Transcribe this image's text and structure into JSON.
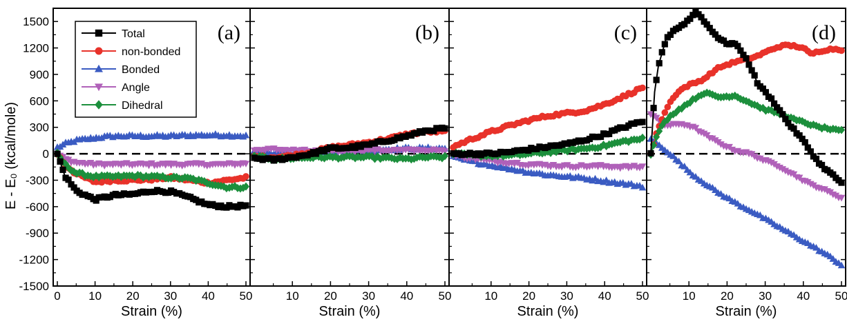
{
  "chart_data": {
    "type": "scatter",
    "ylabel": "E - E₀ (kcal/mole)",
    "ylim": [
      -1500,
      1650
    ],
    "yticks": [
      -1500,
      -1200,
      -900,
      -600,
      -300,
      0,
      300,
      600,
      900,
      1200,
      1500
    ],
    "legend": {
      "placement": "top-left of panel (a)",
      "entries": [
        "Total",
        "non-bonded",
        "Bonded",
        "Angle",
        "Dihedral"
      ]
    },
    "colors": {
      "Total": "#000000",
      "non-bonded": "#e8322a",
      "Bonded": "#3a5bc2",
      "Angle": "#b061b9",
      "Dihedral": "#1c8f3c",
      "zero_line": "#000000"
    },
    "markers": {
      "Total": "square",
      "non-bonded": "circle",
      "Bonded": "triangle-up",
      "Angle": "triangle-down",
      "Dihedral": "diamond"
    },
    "panels": [
      {
        "label": "(a)",
        "xlabel": "Strain (%)",
        "xlim": [
          0,
          50
        ],
        "xticks": [
          0,
          10,
          20,
          30,
          40,
          50
        ],
        "series": [
          {
            "name": "Total",
            "x": [
              0,
              2,
              5,
              10,
              15,
              20,
              25,
              30,
              35,
              40,
              45,
              50
            ],
            "y": [
              0,
              -250,
              -420,
              -520,
              -470,
              -460,
              -420,
              -430,
              -500,
              -580,
              -600,
              -590
            ]
          },
          {
            "name": "non-bonded",
            "x": [
              0,
              2,
              5,
              10,
              15,
              20,
              25,
              30,
              35,
              40,
              45,
              50
            ],
            "y": [
              0,
              -120,
              -230,
              -320,
              -300,
              -300,
              -290,
              -270,
              -300,
              -330,
              -300,
              -270
            ]
          },
          {
            "name": "Bonded",
            "x": [
              0,
              2,
              5,
              10,
              15,
              20,
              25,
              30,
              35,
              40,
              45,
              50
            ],
            "y": [
              70,
              110,
              150,
              180,
              200,
              200,
              200,
              200,
              210,
              210,
              210,
              200
            ]
          },
          {
            "name": "Angle",
            "x": [
              0,
              2,
              5,
              10,
              15,
              20,
              25,
              30,
              35,
              40,
              45,
              50
            ],
            "y": [
              0,
              -60,
              -100,
              -120,
              -120,
              -120,
              -120,
              -120,
              -120,
              -120,
              -120,
              -110
            ]
          },
          {
            "name": "Dihedral",
            "x": [
              0,
              2,
              5,
              10,
              15,
              20,
              25,
              30,
              35,
              40,
              45,
              50
            ],
            "y": [
              0,
              -120,
              -220,
              -260,
              -260,
              -250,
              -260,
              -270,
              -280,
              -330,
              -380,
              -380
            ]
          }
        ]
      },
      {
        "label": "(b)",
        "xlabel": "Strain (%)",
        "xlim": [
          0,
          50
        ],
        "xticks": [
          10,
          20,
          30,
          40,
          50
        ],
        "series": [
          {
            "name": "Total",
            "x": [
              0,
              5,
              10,
              15,
              20,
              25,
              30,
              35,
              40,
              45,
              50
            ],
            "y": [
              -50,
              -70,
              -40,
              0,
              60,
              70,
              100,
              150,
              200,
              260,
              290
            ]
          },
          {
            "name": "non-bonded",
            "x": [
              0,
              5,
              10,
              15,
              20,
              25,
              30,
              35,
              40,
              45,
              50
            ],
            "y": [
              -30,
              -40,
              -20,
              20,
              70,
              100,
              130,
              170,
              220,
              250,
              250
            ]
          },
          {
            "name": "Bonded",
            "x": [
              0,
              5,
              10,
              15,
              20,
              25,
              30,
              35,
              40,
              45,
              50
            ],
            "y": [
              20,
              10,
              10,
              20,
              30,
              30,
              40,
              50,
              60,
              60,
              60
            ]
          },
          {
            "name": "Angle",
            "x": [
              0,
              5,
              10,
              15,
              20,
              25,
              30,
              35,
              40,
              45,
              50
            ],
            "y": [
              40,
              50,
              40,
              30,
              30,
              30,
              40,
              40,
              40,
              40,
              30
            ]
          },
          {
            "name": "Dihedral",
            "x": [
              0,
              5,
              10,
              15,
              20,
              25,
              30,
              35,
              40,
              45,
              50
            ],
            "y": [
              -30,
              -60,
              -50,
              -40,
              -40,
              -40,
              -40,
              -50,
              -60,
              -40,
              -40
            ]
          }
        ]
      },
      {
        "label": "(c)",
        "xlabel": "Strain (%)",
        "xlim": [
          0,
          50
        ],
        "xticks": [
          10,
          20,
          30,
          40,
          50
        ],
        "series": [
          {
            "name": "Total",
            "x": [
              0,
              5,
              10,
              15,
              20,
              25,
              30,
              35,
              40,
              45,
              50
            ],
            "y": [
              0,
              0,
              0,
              20,
              50,
              80,
              110,
              160,
              220,
              300,
              370
            ]
          },
          {
            "name": "non-bonded",
            "x": [
              0,
              5,
              10,
              15,
              20,
              25,
              30,
              35,
              40,
              45,
              50
            ],
            "y": [
              80,
              170,
              250,
              320,
              380,
              430,
              460,
              490,
              560,
              650,
              750
            ]
          },
          {
            "name": "Bonded",
            "x": [
              0,
              5,
              10,
              15,
              20,
              25,
              30,
              35,
              40,
              45,
              50
            ],
            "y": [
              -40,
              -90,
              -130,
              -170,
              -210,
              -240,
              -260,
              -280,
              -310,
              -340,
              -370
            ]
          },
          {
            "name": "Angle",
            "x": [
              0,
              5,
              10,
              15,
              20,
              25,
              30,
              35,
              40,
              45,
              50
            ],
            "y": [
              -20,
              -50,
              -80,
              -100,
              -120,
              -130,
              -140,
              -140,
              -140,
              -150,
              -150
            ]
          },
          {
            "name": "Dihedral",
            "x": [
              0,
              5,
              10,
              15,
              20,
              25,
              30,
              35,
              40,
              45,
              50
            ],
            "y": [
              0,
              -20,
              -20,
              -20,
              0,
              20,
              40,
              60,
              90,
              140,
              170
            ]
          }
        ]
      },
      {
        "label": "(d)",
        "xlabel": "Strain (%)",
        "xlim": [
          0,
          50
        ],
        "xticks": [
          10,
          20,
          30,
          40,
          50
        ],
        "series": [
          {
            "name": "Total",
            "x": [
              0,
              1,
              2,
              4,
              6,
              8,
              10,
              12,
              14,
              16,
              18,
              20,
              22,
              24,
              26,
              28,
              30,
              32,
              34,
              36,
              38,
              40,
              42,
              44,
              46,
              48,
              50
            ],
            "y": [
              0,
              700,
              1000,
              1300,
              1400,
              1450,
              1520,
              1620,
              1500,
              1400,
              1300,
              1250,
              1250,
              1150,
              1000,
              800,
              700,
              600,
              480,
              350,
              250,
              150,
              20,
              -100,
              -180,
              -250,
              -330
            ]
          },
          {
            "name": "non-bonded",
            "x": [
              0,
              2,
              4,
              6,
              8,
              10,
              12,
              14,
              16,
              18,
              20,
              22,
              24,
              26,
              28,
              30,
              32,
              34,
              36,
              38,
              40,
              42,
              44,
              46,
              48,
              50
            ],
            "y": [
              0,
              300,
              500,
              650,
              730,
              780,
              810,
              850,
              920,
              980,
              1010,
              1040,
              1060,
              1080,
              1110,
              1150,
              1190,
              1220,
              1230,
              1220,
              1200,
              1130,
              1160,
              1180,
              1190,
              1180
            ]
          },
          {
            "name": "Bonded",
            "x": [
              0,
              2,
              4,
              6,
              8,
              10,
              12,
              14,
              16,
              18,
              20,
              22,
              24,
              26,
              28,
              30,
              32,
              34,
              36,
              38,
              40,
              42,
              44,
              46,
              48,
              50
            ],
            "y": [
              160,
              100,
              40,
              -40,
              -120,
              -200,
              -270,
              -330,
              -390,
              -450,
              -500,
              -550,
              -600,
              -640,
              -690,
              -740,
              -790,
              -840,
              -890,
              -940,
              -990,
              -1040,
              -1090,
              -1140,
              -1200,
              -1260
            ]
          },
          {
            "name": "Angle",
            "x": [
              0,
              2,
              4,
              6,
              8,
              10,
              12,
              14,
              16,
              18,
              20,
              22,
              24,
              26,
              28,
              30,
              32,
              34,
              36,
              38,
              40,
              42,
              44,
              46,
              48,
              50
            ],
            "y": [
              450,
              380,
              320,
              330,
              340,
              320,
              280,
              220,
              170,
              120,
              80,
              40,
              20,
              0,
              -40,
              -80,
              -110,
              -150,
              -200,
              -250,
              -300,
              -350,
              -380,
              -420,
              -460,
              -500
            ]
          },
          {
            "name": "Dihedral",
            "x": [
              0,
              2,
              4,
              6,
              8,
              10,
              12,
              14,
              16,
              18,
              20,
              22,
              24,
              26,
              28,
              30,
              32,
              34,
              36,
              38,
              40,
              42,
              44,
              46,
              48,
              50
            ],
            "y": [
              0,
              250,
              380,
              460,
              520,
              580,
              640,
              690,
              670,
              640,
              650,
              660,
              620,
              580,
              540,
              500,
              480,
              450,
              420,
              380,
              360,
              330,
              300,
              290,
              270,
              260
            ]
          }
        ]
      }
    ]
  }
}
